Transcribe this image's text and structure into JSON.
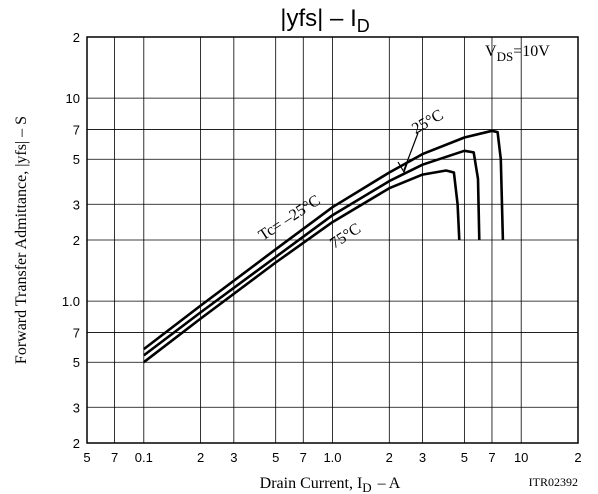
{
  "chart_data": {
    "type": "line",
    "title": "|yfs|  –  I",
    "title_subscript": "D",
    "x_label": "Drain Current, I",
    "x_label_subscript": "D",
    "x_label_unit": "–  A",
    "y_label": "Forward Transfer Admittance, |yfs|  –  S",
    "condition": "V",
    "condition_subscript": "DS",
    "condition_value": "=10V",
    "figure_id": "ITR02392",
    "xlog": true,
    "ylog": true,
    "grid": true,
    "xlim": [
      0.05,
      20
    ],
    "ylim": [
      0.2,
      20
    ],
    "xticks": [
      {
        "value": 0.05,
        "label": "5"
      },
      {
        "value": 0.07,
        "label": "7"
      },
      0.1,
      {
        "value": 0.2,
        "label": "2"
      },
      {
        "value": 0.3,
        "label": "3"
      },
      {
        "value": 0.5,
        "label": "5"
      },
      {
        "value": 0.7,
        "label": "7"
      },
      {
        "value": 1,
        "label": "1.0"
      },
      2,
      3,
      5,
      7,
      10,
      {
        "value": 20,
        "label": "2"
      }
    ],
    "yticks": [
      {
        "value": 20,
        "label": "2"
      },
      10,
      7,
      5,
      3,
      2,
      {
        "value": 1,
        "label": "1.0"
      },
      {
        "value": 0.7,
        "label": "7"
      },
      {
        "value": 0.5,
        "label": "5"
      },
      {
        "value": 0.3,
        "label": "3"
      },
      {
        "value": 0.2,
        "label": "2"
      }
    ],
    "series": [
      {
        "name": "Tc= –25°C",
        "color": "#000000",
        "x": [
          0.1,
          0.2,
          0.5,
          1,
          2,
          3,
          5,
          7,
          7.5,
          7.8,
          8
        ],
        "values": [
          0.58,
          0.95,
          1.8,
          2.9,
          4.3,
          5.3,
          6.4,
          6.9,
          6.8,
          5,
          2
        ]
      },
      {
        "name": "25°C",
        "color": "#000000",
        "x": [
          0.1,
          0.2,
          0.5,
          1,
          2,
          3,
          5,
          5.6,
          5.9,
          6
        ],
        "values": [
          0.54,
          0.88,
          1.65,
          2.65,
          3.9,
          4.7,
          5.5,
          5.4,
          4,
          2
        ]
      },
      {
        "name": "75°C",
        "color": "#000000",
        "x": [
          0.1,
          0.2,
          0.5,
          1,
          2,
          3,
          4,
          4.4,
          4.6,
          4.7
        ],
        "values": [
          0.5,
          0.82,
          1.55,
          2.45,
          3.6,
          4.2,
          4.4,
          4.3,
          3,
          2
        ]
      }
    ]
  }
}
